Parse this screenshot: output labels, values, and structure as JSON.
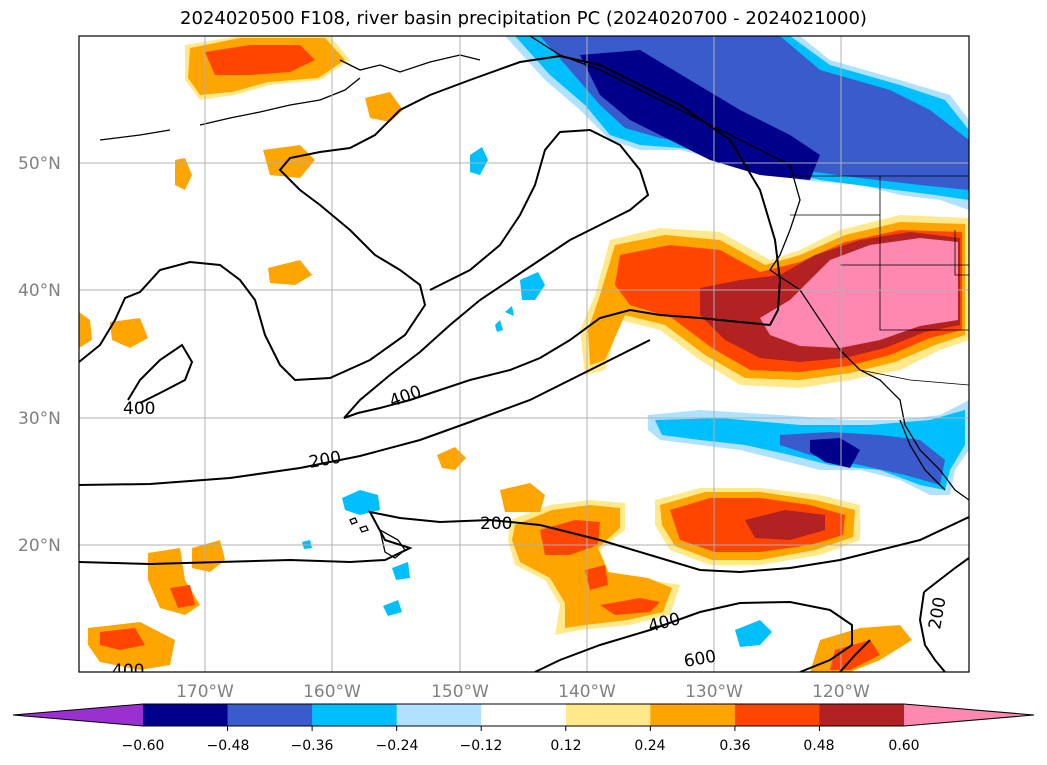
{
  "title": "2024020500 F108, river basin precipitation PC (2024020700 - 2024021000)",
  "map": {
    "lat_labels": [
      "50°N",
      "40°N",
      "30°N",
      "20°N"
    ],
    "lon_labels": [
      "170°W",
      "160°W",
      "150°W",
      "140°W",
      "130°W",
      "120°W"
    ],
    "contour_labels": [
      "400",
      "400",
      "200",
      "200",
      "400",
      "600",
      "200",
      "400"
    ],
    "grid": true
  },
  "colorbar": {
    "ticks": [
      "−0.60",
      "−0.48",
      "−0.36",
      "−0.24",
      "−0.12",
      "0.12",
      "0.24",
      "0.36",
      "0.48",
      "0.60"
    ],
    "colors": [
      "#9b30d0",
      "#00008b",
      "#3a5bcc",
      "#00bfff",
      "#b0e2ff",
      "#ffffff",
      "#ffe98a",
      "#ffa500",
      "#ff4500",
      "#b22222",
      "#ff88b0"
    ],
    "extend": "both"
  }
}
